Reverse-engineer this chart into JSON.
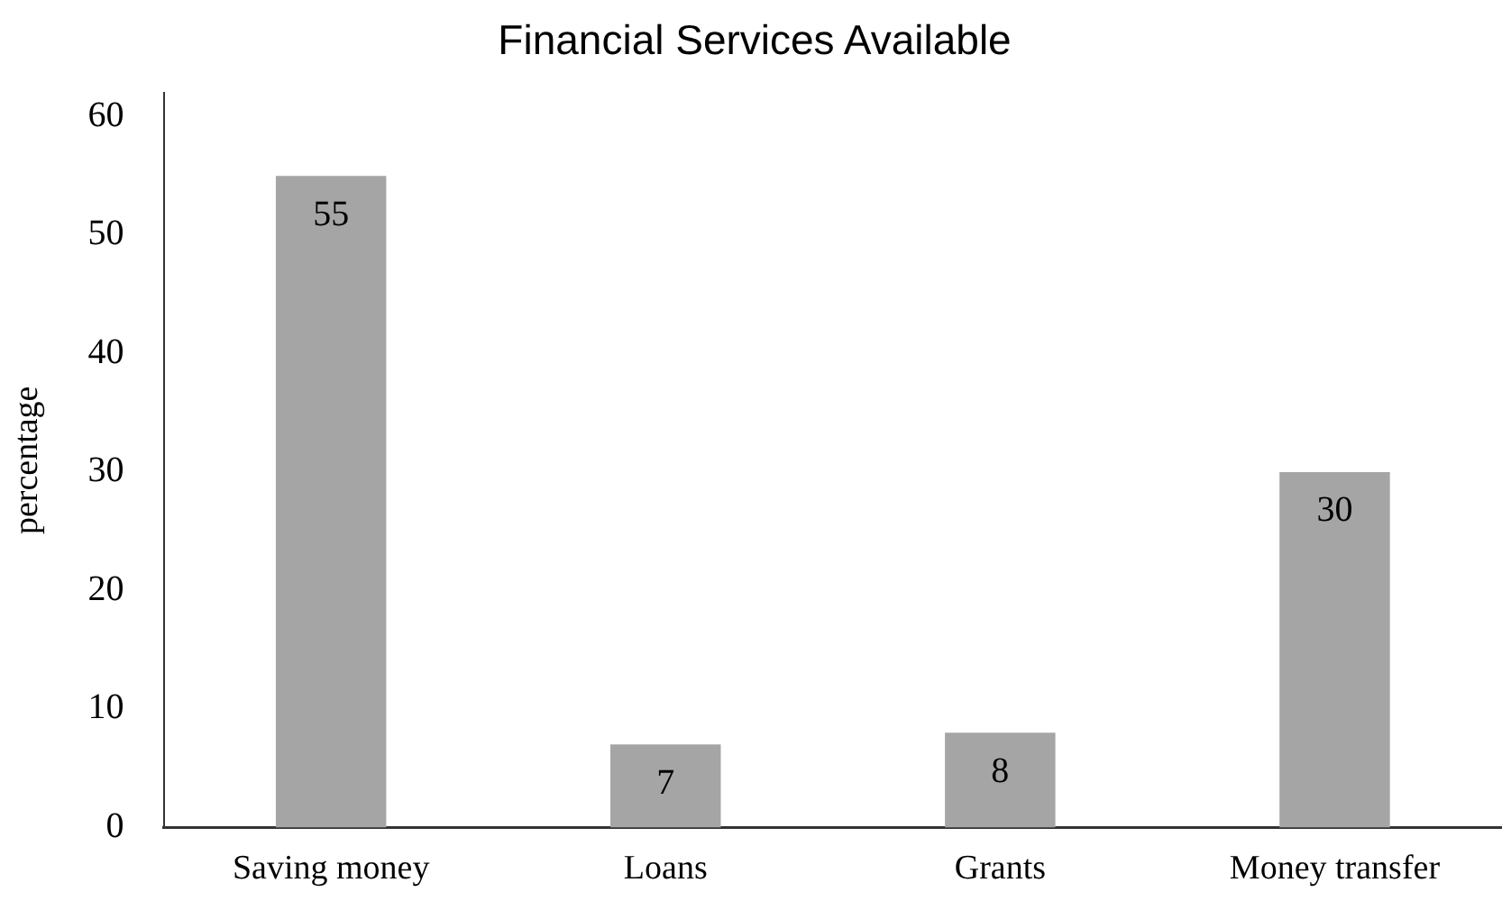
{
  "chart_data": {
    "type": "bar",
    "title": "Financial Services Available",
    "ylabel": "percentage",
    "categories": [
      "Saving money",
      "Loans",
      "Grants",
      "Money transfer"
    ],
    "values": [
      55,
      7,
      8,
      30
    ],
    "color": "#a5a5a5",
    "ylim": [
      0,
      62
    ],
    "yticks": [
      0,
      10,
      20,
      30,
      40,
      50,
      60
    ],
    "grid": false,
    "legend": false,
    "data_labels": true
  }
}
